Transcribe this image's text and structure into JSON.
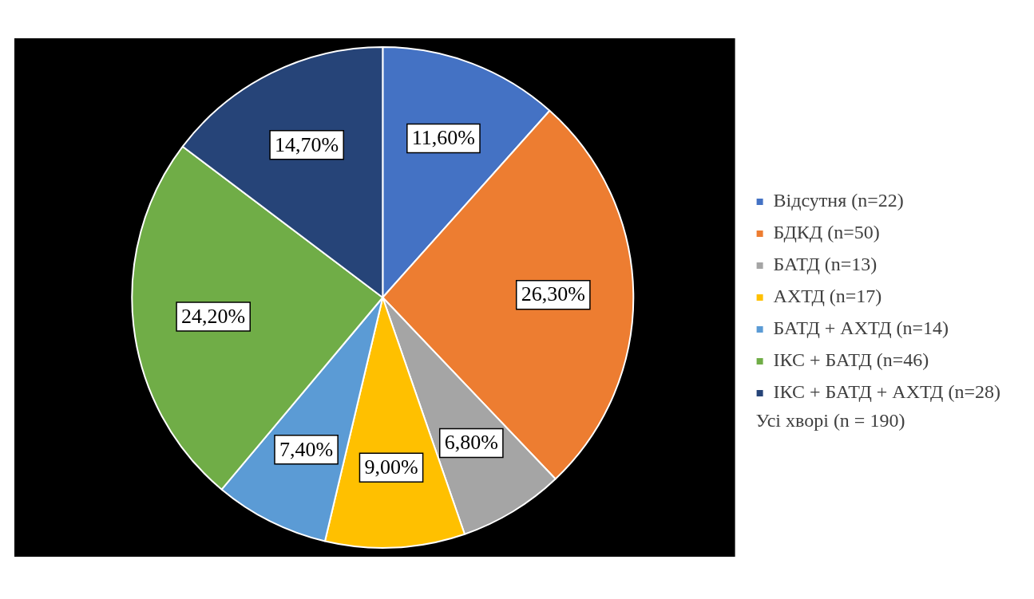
{
  "chart_data": {
    "type": "pie",
    "categories": [
      "Відсутня (n=22)",
      "БДКД (n=50)",
      "БАТД (n=13)",
      "АХТД (n=17)",
      "БАТД + АХТД (n=14)",
      "ІКС + БАТД (n=46)",
      "ІКС + БАТД + АХТД (n=28)"
    ],
    "values": [
      11.6,
      26.3,
      6.8,
      9.0,
      7.4,
      24.2,
      14.7
    ],
    "colors": [
      "#4472c4",
      "#ed7d31",
      "#a5a5a5",
      "#ffc000",
      "#5b9bd5",
      "#70ad47",
      "#264478"
    ],
    "value_labels": [
      "11,60%",
      "26,30%",
      "6,80%",
      "9,00%",
      "7,40%",
      "24,20%",
      "14,70%"
    ],
    "legend": "right",
    "annotations": [
      "Усі хворі (n = 190)"
    ]
  }
}
